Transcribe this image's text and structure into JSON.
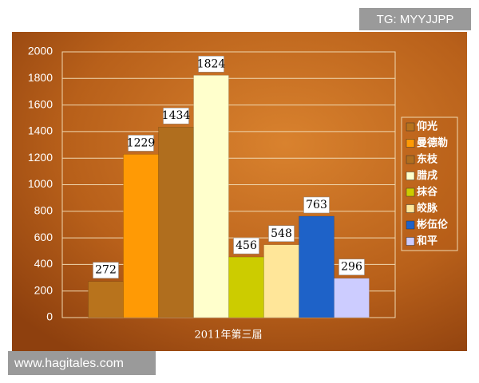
{
  "chart_data": {
    "type": "bar",
    "categories": [
      "2011年第三届"
    ],
    "series": [
      {
        "name": "仰光",
        "color": "#b8731c",
        "values": [
          272
        ]
      },
      {
        "name": "曼德勒",
        "color": "#ff9a05",
        "values": [
          1229
        ]
      },
      {
        "name": "东枝",
        "color": "#b06e1e",
        "values": [
          1434
        ]
      },
      {
        "name": "腊戌",
        "color": "#ffffcc",
        "values": [
          1824
        ]
      },
      {
        "name": "抹谷",
        "color": "#cccc00",
        "values": [
          456
        ]
      },
      {
        "name": "皎脉",
        "color": "#ffe699",
        "values": [
          548
        ]
      },
      {
        "name": "彬伍伦",
        "color": "#1e62c8",
        "values": [
          763
        ]
      },
      {
        "name": "和平",
        "color": "#ccccff",
        "values": [
          296
        ]
      }
    ],
    "ylim": [
      0,
      2000
    ],
    "yticks": [
      0,
      200,
      400,
      600,
      800,
      1000,
      1200,
      1400,
      1600,
      1800,
      2000
    ],
    "grid": true,
    "legend": "right"
  },
  "watermarks": {
    "top": "TG: MYYJJPP",
    "bottom": "www.hagitales.com"
  }
}
